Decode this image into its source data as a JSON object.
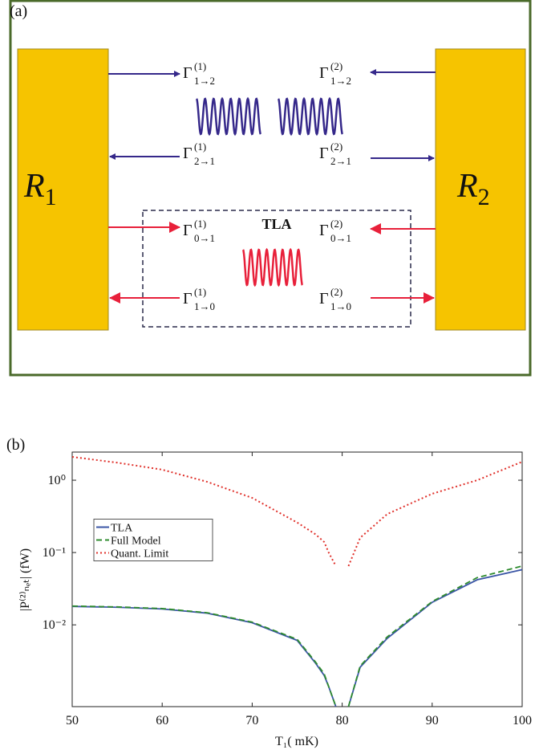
{
  "panel_a": {
    "label": "(a)",
    "reservoirs": [
      {
        "base": "R",
        "sub": "1"
      },
      {
        "base": "R",
        "sub": "2"
      }
    ],
    "tla_label": "TLA",
    "rates": [
      {
        "base": "Γ",
        "sup": "(1)",
        "sub": "1→2"
      },
      {
        "base": "Γ",
        "sup": "(2)",
        "sub": "1→2"
      },
      {
        "base": "Γ",
        "sup": "(1)",
        "sub": "2→1"
      },
      {
        "base": "Γ",
        "sup": "(2)",
        "sub": "2→1"
      },
      {
        "base": "Γ",
        "sup": "(1)",
        "sub": "0→1"
      },
      {
        "base": "Γ",
        "sup": "(2)",
        "sub": "0→1"
      },
      {
        "base": "Γ",
        "sup": "(1)",
        "sub": "1→0"
      },
      {
        "base": "Γ",
        "sup": "(2)",
        "sub": "1→0"
      }
    ]
  },
  "chart_data": {
    "type": "line",
    "panel_label": "(b)",
    "x_label": "T₁( mK)",
    "y_label": "|P⁽²⁾ₙₑₜ| (fW)",
    "x": [
      50,
      55,
      60,
      65,
      70,
      75,
      77,
      78,
      78.5,
      79.3,
      80,
      80.7,
      82,
      85,
      90,
      95,
      100
    ],
    "series": [
      {
        "name": "TLA",
        "color": "#3a55a5",
        "dash": "solid",
        "values": [
          0.018,
          0.0175,
          0.0166,
          0.0145,
          0.0107,
          0.0061,
          0.003,
          0.002,
          0.0014,
          0.00074,
          null,
          0.00074,
          0.0026,
          0.0065,
          0.0205,
          0.042,
          0.058
        ]
      },
      {
        "name": "Full Model",
        "color": "#2e8b2e",
        "dash": "dashed",
        "values": [
          0.0182,
          0.0177,
          0.0168,
          0.0147,
          0.0109,
          0.0063,
          0.0031,
          0.0021,
          0.0014,
          0.00074,
          null,
          0.00074,
          0.0027,
          0.0068,
          0.021,
          0.045,
          0.065
        ]
      },
      {
        "name": "Quant. Limit",
        "color": "#e0302a",
        "dash": "dotted",
        "values": [
          2.1,
          1.75,
          1.4,
          0.95,
          0.57,
          0.26,
          0.18,
          0.14,
          0.1,
          0.065,
          null,
          0.065,
          0.16,
          0.34,
          0.65,
          1.0,
          1.8
        ]
      }
    ],
    "xlim": [
      50,
      100
    ],
    "xticks": [
      50,
      60,
      70,
      80,
      90,
      100
    ],
    "ylim": [
      0.00074,
      2.45
    ],
    "ylog": true,
    "yticks": [
      {
        "value": 0.01,
        "label": "10⁻²"
      },
      {
        "value": 0.1,
        "label": "10⁻¹"
      },
      {
        "value": 1,
        "label": "10⁰"
      }
    ],
    "grid": false,
    "legend": "center left"
  }
}
